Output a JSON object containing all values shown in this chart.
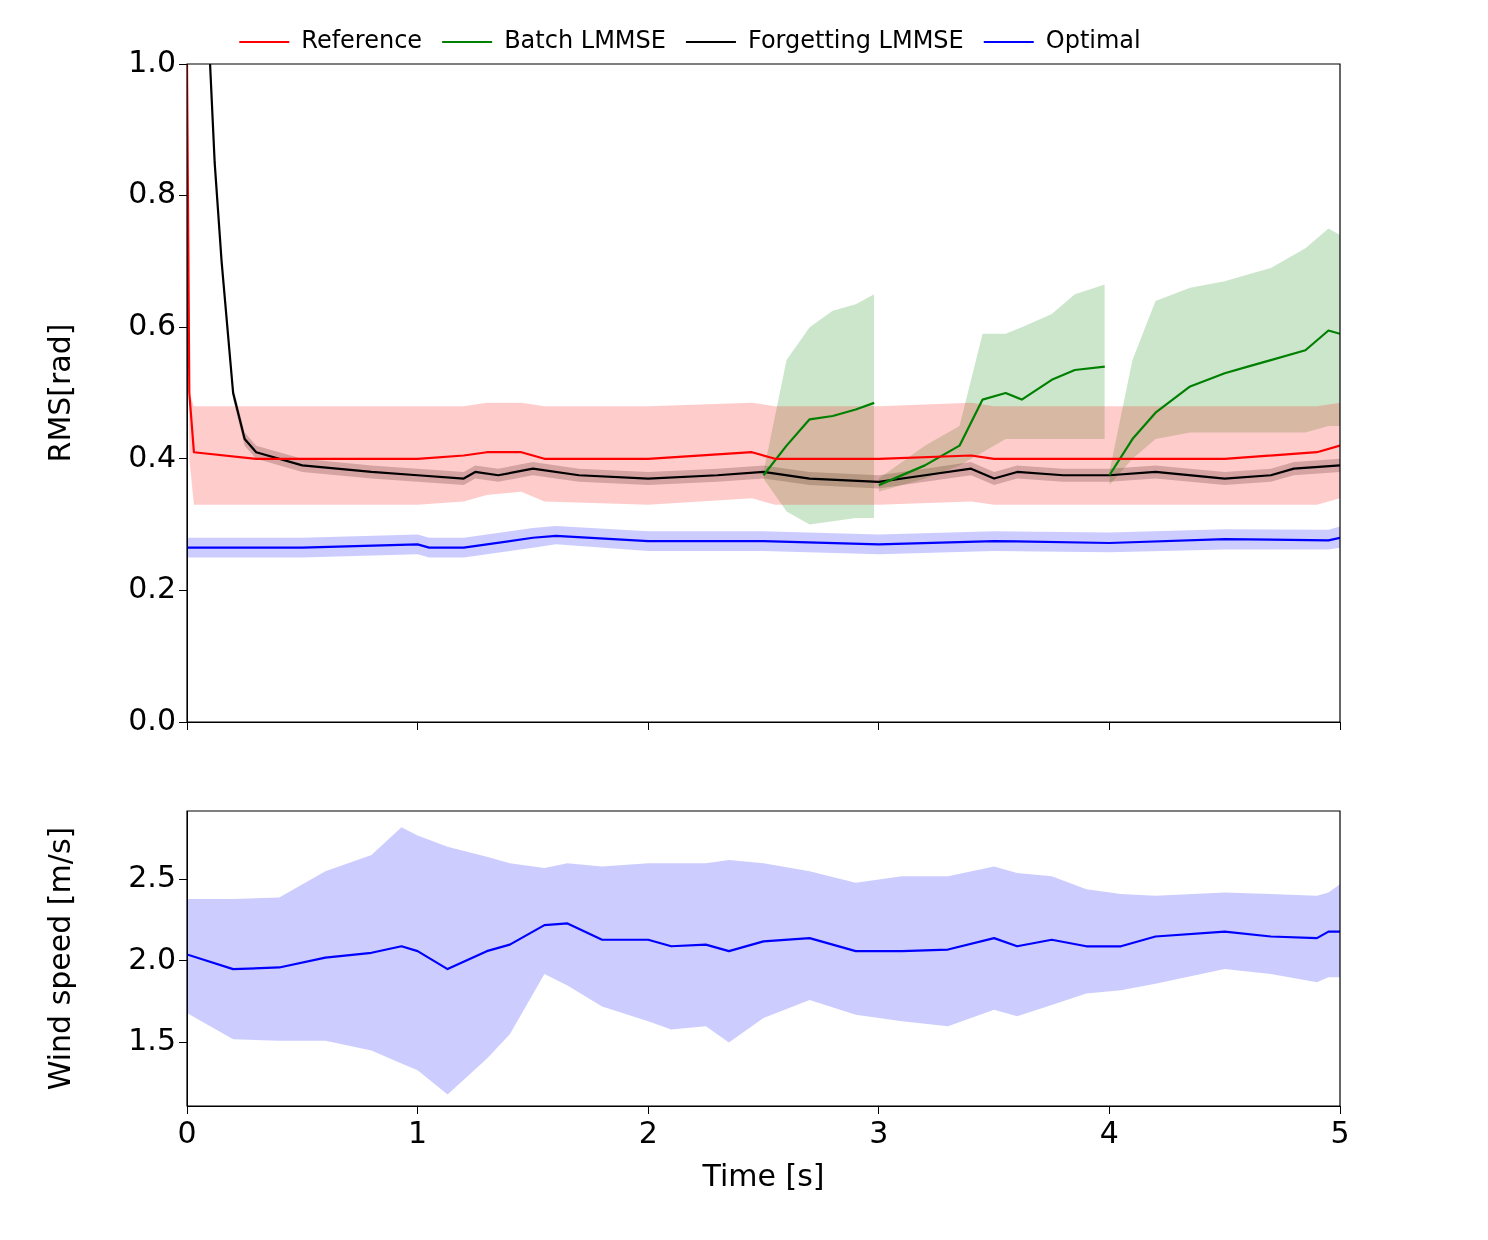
{
  "chart_data": [
    {
      "type": "line",
      "ylabel": "RMS[rad]",
      "xlim": [
        0,
        5
      ],
      "ylim": [
        0,
        1
      ],
      "xticks": [
        0,
        1,
        2,
        3,
        4,
        5
      ],
      "yticks": [
        {
          "value": 0,
          "label": "0.0"
        },
        {
          "value": 0.2,
          "label": "0.2"
        },
        {
          "value": 0.4,
          "label": "0.4"
        },
        {
          "value": 0.6,
          "label": "0.6"
        },
        {
          "value": 0.8,
          "label": "0.8"
        },
        {
          "value": 1,
          "label": "1.0"
        }
      ],
      "tick_labels": "y",
      "grid": false,
      "legend": "top",
      "marker": "none",
      "series": [
        {
          "name": "Reference",
          "color": "#ff0000",
          "x": [
            0,
            0.01,
            0.03,
            0.3,
            0.6,
            1.0,
            1.2,
            1.3,
            1.45,
            1.55,
            2.0,
            2.45,
            2.55,
            3.0,
            3.4,
            3.5,
            4.0,
            4.5,
            4.9,
            5.0
          ],
          "values": [
            1.0,
            0.5,
            0.41,
            0.4,
            0.4,
            0.4,
            0.405,
            0.41,
            0.41,
            0.4,
            0.4,
            0.41,
            0.4,
            0.4,
            0.405,
            0.4,
            0.4,
            0.4,
            0.41,
            0.42
          ],
          "lower": [
            1.0,
            0.4,
            0.33,
            0.33,
            0.33,
            0.33,
            0.335,
            0.345,
            0.35,
            0.335,
            0.33,
            0.34,
            0.33,
            0.33,
            0.335,
            0.33,
            0.33,
            0.33,
            0.33,
            0.34
          ],
          "upper": [
            1.0,
            0.5,
            0.48,
            0.48,
            0.48,
            0.48,
            0.48,
            0.485,
            0.485,
            0.48,
            0.48,
            0.485,
            0.48,
            0.48,
            0.485,
            0.48,
            0.48,
            0.48,
            0.48,
            0.485
          ]
        },
        {
          "name": "Batch LMMSE",
          "color": "#008000",
          "x": [
            2.5,
            2.6,
            2.7,
            2.8,
            2.9,
            2.98,
            2.99,
            3.0,
            3.2,
            3.35,
            3.45,
            3.55,
            3.62,
            3.75,
            3.85,
            3.98,
            3.99,
            4.0,
            4.1,
            4.2,
            4.35,
            4.5,
            4.6,
            4.7,
            4.85,
            4.95,
            5.0
          ],
          "values": [
            0.375,
            0.42,
            0.46,
            0.465,
            0.475,
            0.485,
            null,
            0.36,
            0.39,
            0.42,
            0.49,
            0.5,
            0.49,
            0.52,
            0.535,
            0.54,
            null,
            0.375,
            0.43,
            0.47,
            0.51,
            0.53,
            0.54,
            0.55,
            0.565,
            0.595,
            0.59
          ],
          "lower": [
            0.37,
            0.32,
            0.3,
            0.305,
            0.31,
            0.31,
            null,
            0.35,
            0.37,
            0.39,
            0.41,
            0.43,
            0.43,
            0.43,
            0.43,
            0.43,
            null,
            0.36,
            0.4,
            0.43,
            0.44,
            0.44,
            0.44,
            0.44,
            0.44,
            0.45,
            0.45
          ],
          "upper": [
            0.38,
            0.55,
            0.6,
            0.625,
            0.635,
            0.65,
            null,
            0.37,
            0.42,
            0.45,
            0.59,
            0.59,
            0.6,
            0.62,
            0.65,
            0.665,
            null,
            0.38,
            0.55,
            0.64,
            0.66,
            0.67,
            0.68,
            0.69,
            0.72,
            0.75,
            0.74
          ]
        },
        {
          "name": "Forgetting LMMSE",
          "color": "#000000",
          "x": [
            0.1,
            0.12,
            0.15,
            0.2,
            0.25,
            0.3,
            0.5,
            0.8,
            1.0,
            1.2,
            1.25,
            1.35,
            1.5,
            1.7,
            2.0,
            2.3,
            2.5,
            2.7,
            3.0,
            3.2,
            3.4,
            3.5,
            3.6,
            3.8,
            4.0,
            4.2,
            4.5,
            4.7,
            4.8,
            5.0
          ],
          "values": [
            1.0,
            0.85,
            0.7,
            0.5,
            0.43,
            0.41,
            0.39,
            0.38,
            0.375,
            0.37,
            0.38,
            0.375,
            0.385,
            0.375,
            0.37,
            0.375,
            0.38,
            0.37,
            0.365,
            0.375,
            0.385,
            0.37,
            0.38,
            0.375,
            0.375,
            0.38,
            0.37,
            0.375,
            0.385,
            0.39
          ],
          "lower": [
            1.0,
            0.85,
            0.7,
            0.49,
            0.42,
            0.4,
            0.38,
            0.37,
            0.365,
            0.36,
            0.37,
            0.365,
            0.375,
            0.365,
            0.36,
            0.365,
            0.37,
            0.36,
            0.355,
            0.365,
            0.375,
            0.36,
            0.37,
            0.365,
            0.365,
            0.37,
            0.36,
            0.365,
            0.375,
            0.38
          ],
          "upper": [
            1.0,
            0.85,
            0.7,
            0.51,
            0.44,
            0.42,
            0.4,
            0.39,
            0.385,
            0.38,
            0.39,
            0.385,
            0.395,
            0.385,
            0.38,
            0.385,
            0.39,
            0.38,
            0.375,
            0.385,
            0.395,
            0.38,
            0.39,
            0.385,
            0.385,
            0.39,
            0.38,
            0.385,
            0.395,
            0.4
          ]
        },
        {
          "name": "Optimal",
          "color": "#0000ff",
          "x": [
            0,
            0.5,
            1.0,
            1.05,
            1.2,
            1.5,
            1.6,
            2.0,
            2.5,
            3.0,
            3.5,
            4.0,
            4.5,
            4.95,
            5.0
          ],
          "values": [
            0.265,
            0.265,
            0.27,
            0.265,
            0.265,
            0.28,
            0.283,
            0.275,
            0.275,
            0.27,
            0.275,
            0.272,
            0.278,
            0.276,
            0.28
          ],
          "lower": [
            0.25,
            0.25,
            0.255,
            0.25,
            0.25,
            0.265,
            0.27,
            0.26,
            0.26,
            0.255,
            0.26,
            0.258,
            0.262,
            0.262,
            0.265
          ],
          "upper": [
            0.28,
            0.28,
            0.285,
            0.28,
            0.28,
            0.295,
            0.298,
            0.29,
            0.29,
            0.285,
            0.29,
            0.288,
            0.293,
            0.292,
            0.297
          ]
        }
      ]
    },
    {
      "type": "line",
      "xlabel": "Time [s]",
      "ylabel": "Wind speed [m/s]",
      "xlim": [
        0,
        5
      ],
      "ylim": [
        1.11,
        2.92
      ],
      "xticks": [
        0,
        1,
        2,
        3,
        4,
        5
      ],
      "yticks": [
        {
          "value": 1.5,
          "label": "1.5"
        },
        {
          "value": 2.0,
          "label": "2.0"
        },
        {
          "value": 2.5,
          "label": "2.5"
        }
      ],
      "grid": false,
      "marker": "none",
      "series": [
        {
          "color": "#0000ff",
          "x": [
            0,
            0.2,
            0.4,
            0.6,
            0.8,
            0.93,
            1.0,
            1.13,
            1.3,
            1.4,
            1.55,
            1.65,
            1.8,
            2.0,
            2.1,
            2.25,
            2.35,
            2.5,
            2.7,
            2.9,
            3.1,
            3.3,
            3.5,
            3.6,
            3.75,
            3.9,
            4.05,
            4.2,
            4.5,
            4.7,
            4.9,
            4.95,
            5.0
          ],
          "values": [
            2.04,
            1.95,
            1.96,
            2.02,
            2.05,
            2.09,
            2.06,
            1.95,
            2.06,
            2.1,
            2.22,
            2.23,
            2.13,
            2.13,
            2.09,
            2.1,
            2.06,
            2.12,
            2.14,
            2.06,
            2.06,
            2.07,
            2.14,
            2.09,
            2.13,
            2.09,
            2.09,
            2.15,
            2.18,
            2.15,
            2.14,
            2.18,
            2.18
          ],
          "lower": [
            1.68,
            1.52,
            1.51,
            1.51,
            1.45,
            1.37,
            1.33,
            1.18,
            1.4,
            1.55,
            1.92,
            1.85,
            1.72,
            1.63,
            1.58,
            1.6,
            1.5,
            1.65,
            1.76,
            1.67,
            1.63,
            1.6,
            1.7,
            1.66,
            1.73,
            1.8,
            1.82,
            1.86,
            1.95,
            1.92,
            1.87,
            1.9,
            1.9
          ],
          "upper": [
            2.38,
            2.38,
            2.39,
            2.55,
            2.65,
            2.82,
            2.77,
            2.7,
            2.64,
            2.6,
            2.57,
            2.6,
            2.58,
            2.6,
            2.6,
            2.6,
            2.62,
            2.6,
            2.55,
            2.48,
            2.52,
            2.52,
            2.58,
            2.54,
            2.52,
            2.44,
            2.41,
            2.4,
            2.42,
            2.41,
            2.4,
            2.42,
            2.47
          ]
        }
      ]
    }
  ]
}
